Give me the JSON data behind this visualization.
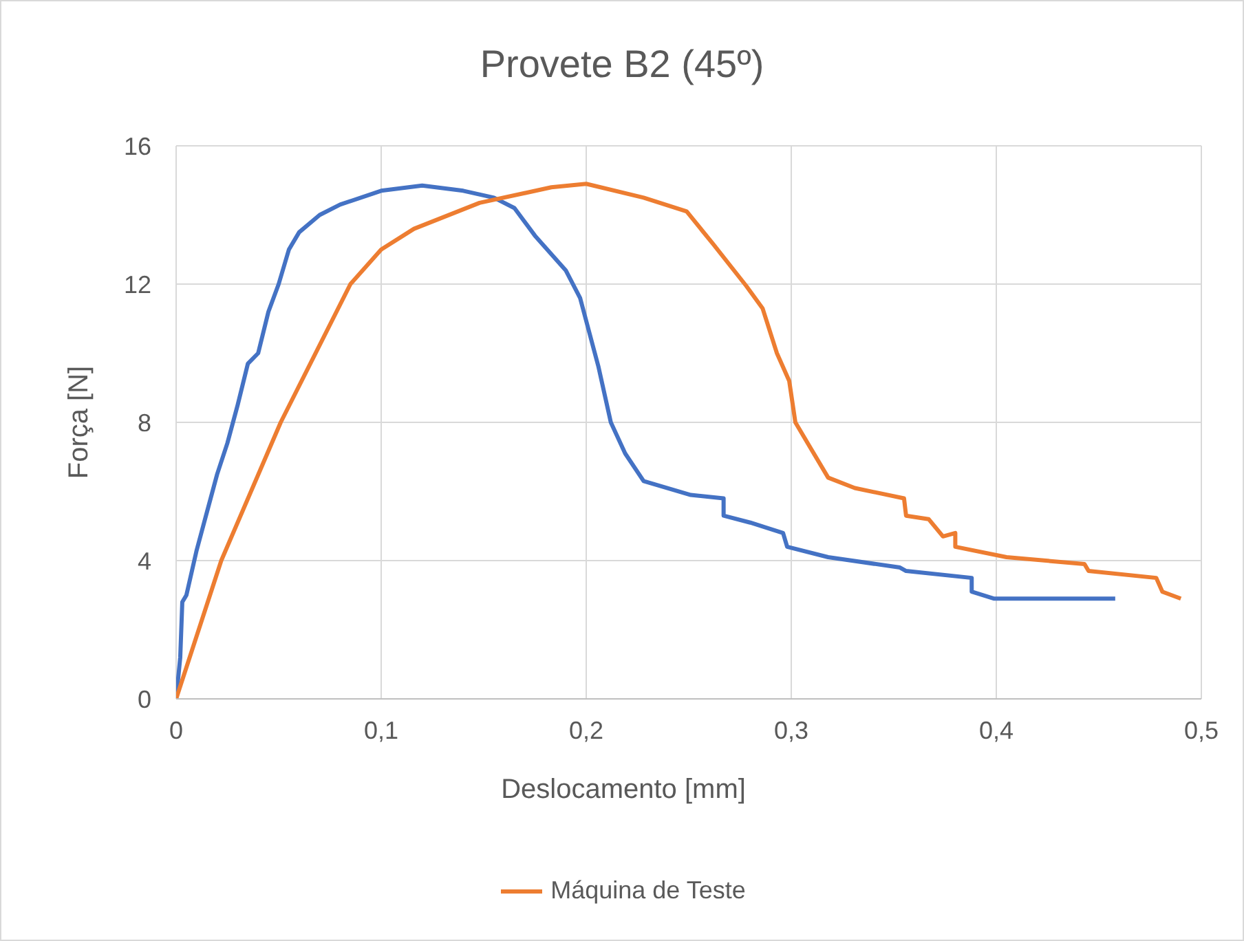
{
  "chart_data": {
    "type": "line",
    "title": "Provete B2 (45º)",
    "xlabel": "Deslocamento [mm]",
    "ylabel": "Força [N]",
    "xlim": [
      0,
      0.5
    ],
    "xticks": [
      0,
      {
        "value": 0.1,
        "label": "0,1"
      },
      {
        "value": 0.2,
        "label": "0,2"
      },
      {
        "value": 0.3,
        "label": "0,3"
      },
      {
        "value": 0.4,
        "label": "0,4"
      },
      {
        "value": 0.5,
        "label": "0,5"
      }
    ],
    "ylim": [
      0,
      16
    ],
    "yticks": [
      0,
      4,
      8,
      12,
      16
    ],
    "grid": true,
    "legend": "bottom",
    "marker": "none",
    "line_style": "solid",
    "series": [
      {
        "color": "#4472c4",
        "x": [
          0,
          0.002,
          0.003,
          0.005,
          0.01,
          0.015,
          0.02,
          0.025,
          0.03,
          0.035,
          0.04,
          0.045,
          0.05,
          0.055,
          0.06,
          0.07,
          0.08,
          0.1,
          0.12,
          0.14,
          0.155,
          0.165,
          0.175,
          0.19,
          0.197,
          0.206,
          0.212,
          0.219,
          0.228,
          0.251,
          0.267,
          0.267,
          0.28,
          0.296,
          0.298,
          0.318,
          0.353,
          0.356,
          0.388,
          0.388,
          0.399,
          0.458
        ],
        "values": [
          0,
          1.2,
          2.8,
          3,
          4.3,
          5.4,
          6.5,
          7.4,
          8.5,
          9.7,
          10,
          11.2,
          12,
          13,
          13.5,
          14,
          14.3,
          14.7,
          14.85,
          14.7,
          14.5,
          14.2,
          13.4,
          12.4,
          11.6,
          9.6,
          8,
          7.1,
          6.3,
          5.9,
          5.8,
          5.3,
          5.1,
          4.8,
          4.4,
          4.1,
          3.8,
          3.7,
          3.5,
          3.1,
          2.9,
          2.9
        ]
      },
      {
        "name": "Máquina de Teste",
        "color": "#ed7d31",
        "x": [
          0,
          0.022,
          0.051,
          0.085,
          0.1,
          0.116,
          0.148,
          0.183,
          0.2,
          0.228,
          0.249,
          0.262,
          0.278,
          0.286,
          0.293,
          0.299,
          0.302,
          0.309,
          0.318,
          0.331,
          0.355,
          0.356,
          0.367,
          0.374,
          0.38,
          0.38,
          0.405,
          0.443,
          0.445,
          0.478,
          0.481,
          0.49
        ],
        "values": [
          0,
          4,
          8,
          12,
          13,
          13.6,
          14.35,
          14.8,
          14.9,
          14.5,
          14.1,
          13.15,
          11.95,
          11.3,
          10,
          9.2,
          8,
          7.3,
          6.4,
          6.1,
          5.8,
          5.3,
          5.2,
          4.7,
          4.8,
          4.4,
          4.1,
          3.9,
          3.7,
          3.5,
          3.1,
          2.9
        ]
      }
    ]
  }
}
